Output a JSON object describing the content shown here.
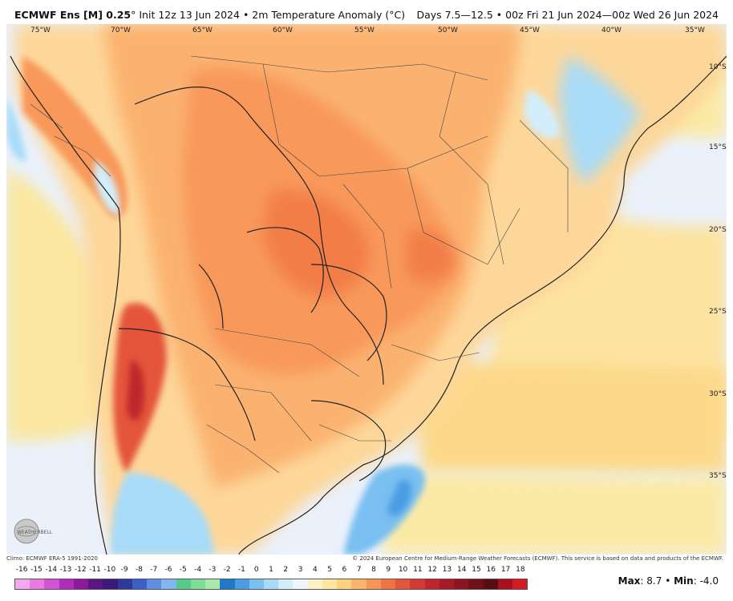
{
  "header": {
    "model": "ECMWF Ens [M] 0.25",
    "degree": "°",
    "init": "Init 12z 13 Jun 2024",
    "bullet": "•",
    "field": "2m Temperature Anomaly (°C)",
    "valid": "Days 7.5—12.5 • 00z Fri 21 Jun 2024—00z Wed 26 Jun 2024"
  },
  "map": {
    "lon_labels": [
      "75°W",
      "70°W",
      "65°W",
      "60°W",
      "55°W",
      "50°W",
      "45°W",
      "40°W",
      "35°W"
    ],
    "lat_labels": [
      "10°S",
      "15°S",
      "20°S",
      "25°S",
      "30°S",
      "35°S"
    ]
  },
  "credits": {
    "climo": "Climo: ECMWF ERA-5 1991-2020",
    "copyright": "© 2024 European Centre for Medium-Range Weather Forecasts (ECMWF). This service is based on data and products of the ECMWF."
  },
  "colorbar": {
    "ticks": [
      "-16",
      "-15",
      "-14",
      "-13",
      "-12",
      "-11",
      "-10",
      "-9",
      "-8",
      "-7",
      "-6",
      "-5",
      "-4",
      "-3",
      "-2",
      "-1",
      "0",
      "1",
      "2",
      "3",
      "4",
      "5",
      "6",
      "7",
      "8",
      "9",
      "10",
      "11",
      "12",
      "13",
      "14",
      "15",
      "16",
      "17",
      "18"
    ],
    "colors": [
      "#f3a9f0",
      "#e87ae6",
      "#d452d6",
      "#b12cbb",
      "#8c1a9c",
      "#5a167f",
      "#3b1a7a",
      "#2d3a9c",
      "#3c5fc8",
      "#5f8fe0",
      "#82b6f0",
      "#57c98a",
      "#7fdc97",
      "#a8eaa8",
      "#1f78c8",
      "#4a9de2",
      "#79bff0",
      "#a8dbf8",
      "#d2eefb",
      "#eef5fb",
      "#fdf2c7",
      "#fde6a0",
      "#fcd27f",
      "#fbb56a",
      "#f89454",
      "#f07443",
      "#e4553a",
      "#d33b32",
      "#bf262c",
      "#a81b26",
      "#8d1420",
      "#721019",
      "#5a0c13",
      "#a8101e",
      "#d61a22"
    ]
  },
  "stats": {
    "max_label": "Max",
    "max_value": "8.7",
    "sep": "•",
    "min_label": "Min",
    "min_value": "-4.0"
  },
  "logo_text": "WEATHERBELL"
}
